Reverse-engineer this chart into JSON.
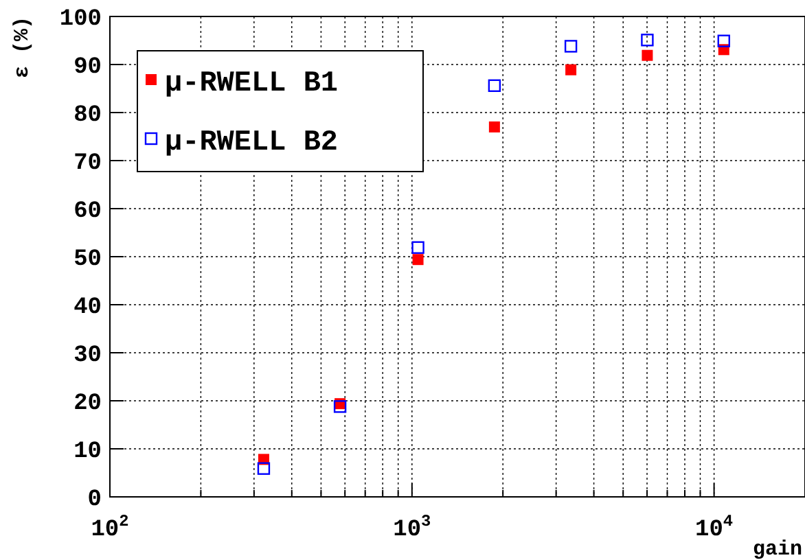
{
  "chart_data": {
    "type": "scatter",
    "xlabel": "gain",
    "ylabel": "ε (%)",
    "log": "x",
    "grid": true,
    "marker": "square",
    "legend": "top left",
    "xlim": [
      100,
      20000
    ],
    "ylim": [
      0,
      100
    ],
    "xticks": [
      {
        "value": 100,
        "label": "10$^{2}$"
      },
      {
        "value": 200,
        "label": null
      },
      {
        "value": 300,
        "label": null
      },
      {
        "value": 400,
        "label": null
      },
      {
        "value": 500,
        "label": null
      },
      {
        "value": 600,
        "label": null
      },
      {
        "value": 700,
        "label": null
      },
      {
        "value": 800,
        "label": null
      },
      {
        "value": 900,
        "label": null
      },
      {
        "value": 1000,
        "label": "10$^{3}$"
      },
      {
        "value": 2000,
        "label": null
      },
      {
        "value": 3000,
        "label": null
      },
      {
        "value": 4000,
        "label": null
      },
      {
        "value": 5000,
        "label": null
      },
      {
        "value": 6000,
        "label": null
      },
      {
        "value": 7000,
        "label": null
      },
      {
        "value": 8000,
        "label": null
      },
      {
        "value": 9000,
        "label": null
      },
      {
        "value": 10000,
        "label": "10$^{4}$"
      },
      {
        "value": 20000,
        "label": null
      }
    ],
    "yticks": [
      0,
      10,
      20,
      30,
      40,
      50,
      60,
      70,
      80,
      90,
      100
    ],
    "x": [
      323,
      578,
      1047,
      1875,
      3357,
      6012,
      10770
    ],
    "series": [
      {
        "name": "μ-RWELL B1",
        "color": "#ff0000",
        "values": [
          7.8,
          19.4,
          49.4,
          77.0,
          88.9,
          91.9,
          93.1
        ]
      },
      {
        "name": "μ-RWELL B2",
        "color": "#0000ff",
        "values": [
          5.9,
          18.8,
          51.9,
          85.6,
          93.8,
          95.1,
          94.9
        ]
      }
    ]
  }
}
